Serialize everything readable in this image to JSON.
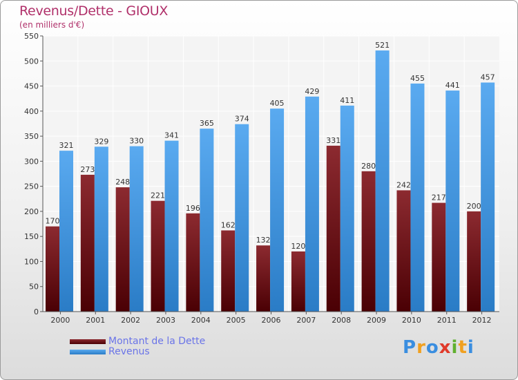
{
  "header": {
    "title": "Revenus/Dette - GIOUX",
    "subtitle": "(en milliers d'€)"
  },
  "colors": {
    "title": "#b0306a",
    "dette": "#7a1418",
    "revenus": "#3b95dd",
    "legend_text": "#6a74e8"
  },
  "chart_data": {
    "type": "bar",
    "categories": [
      "2000",
      "2001",
      "2002",
      "2003",
      "2004",
      "2005",
      "2006",
      "2007",
      "2008",
      "2009",
      "2010",
      "2011",
      "2012"
    ],
    "series": [
      {
        "name": "Montant de la Dette",
        "values": [
          170,
          273,
          248,
          221,
          196,
          162,
          132,
          120,
          331,
          280,
          242,
          217,
          200
        ]
      },
      {
        "name": "Revenus",
        "values": [
          321,
          329,
          330,
          341,
          365,
          374,
          405,
          429,
          411,
          521,
          455,
          441,
          457
        ]
      }
    ],
    "ylim": [
      0,
      550
    ],
    "yticks": [
      0,
      50,
      100,
      150,
      200,
      250,
      300,
      350,
      400,
      450,
      500,
      550
    ],
    "grid": true,
    "legend_position": "bottom-left"
  },
  "legend": {
    "items": [
      {
        "label": "Montant de la Dette"
      },
      {
        "label": "Revenus"
      }
    ]
  },
  "logo": {
    "letters": [
      "P",
      "r",
      "o",
      "x",
      "i",
      "t",
      "i"
    ],
    "colors": [
      "#3a8ee0",
      "#f0a020",
      "#3a8ee0",
      "#e03a2a",
      "#60b030",
      "#f0a020",
      "#3a8ee0"
    ]
  }
}
